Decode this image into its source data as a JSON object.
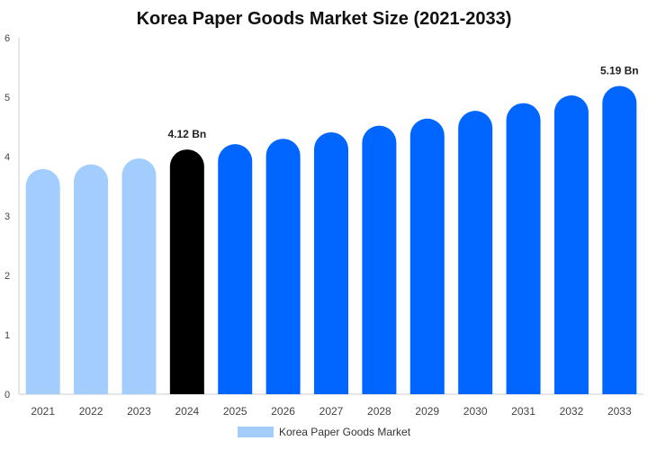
{
  "chart_data": {
    "type": "bar",
    "title": "Korea Paper Goods Market Size (2021-2033)",
    "categories": [
      "2021",
      "2022",
      "2023",
      "2024",
      "2025",
      "2026",
      "2027",
      "2028",
      "2029",
      "2030",
      "2031",
      "2032",
      "2033"
    ],
    "series": [
      {
        "name": "Korea Paper Goods Market",
        "values": [
          3.79,
          3.87,
          3.97,
          4.12,
          4.21,
          4.3,
          4.41,
          4.52,
          4.64,
          4.77,
          4.9,
          5.03,
          5.19
        ]
      }
    ],
    "data_labels": [
      {
        "category": "2024",
        "text": "4.12 Bn"
      },
      {
        "category": "2033",
        "text": "5.19 Bn"
      }
    ],
    "ylim": [
      0,
      6
    ],
    "yticks": [
      0,
      1,
      2,
      3,
      4,
      5,
      6
    ],
    "xlabel": "",
    "ylabel": "",
    "grid": false,
    "legend_position": "bottom",
    "colors": {
      "historical": "#a3cdff",
      "current": "#000000",
      "forecast": "#0066ff",
      "axis": "#cccccc",
      "tick_text": "#444444"
    },
    "bar_color_by_category": {
      "2021": "historical",
      "2022": "historical",
      "2023": "historical",
      "2024": "current",
      "2025": "forecast",
      "2026": "forecast",
      "2027": "forecast",
      "2028": "forecast",
      "2029": "forecast",
      "2030": "forecast",
      "2031": "forecast",
      "2032": "forecast",
      "2033": "forecast"
    }
  }
}
